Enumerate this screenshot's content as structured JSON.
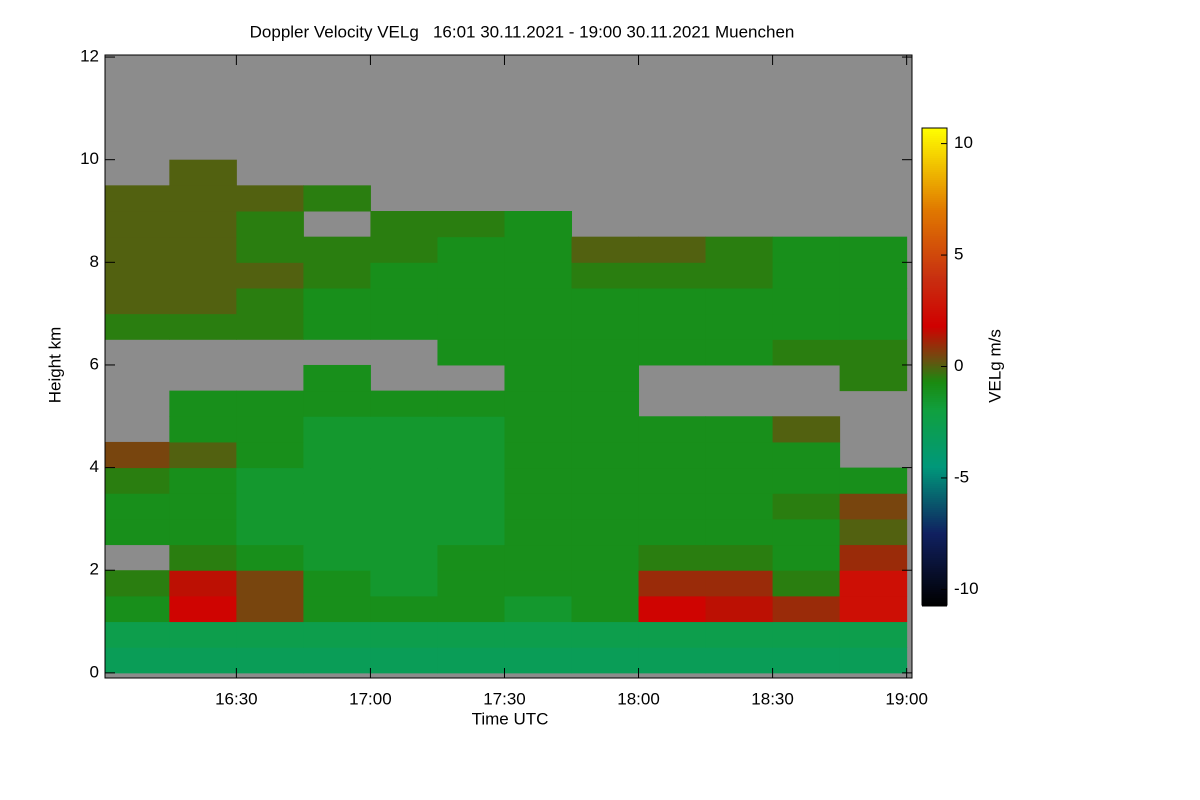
{
  "chart_data": {
    "type": "heatmap",
    "title": "Doppler Velocity VELg   16:01 30.11.2021 - 19:00 30.11.2021 Muenchen",
    "xlabel": "Time UTC",
    "ylabel": "Height km",
    "colorbar_label": "VELg m/s",
    "xlim": [
      16.01,
      19.02
    ],
    "ylim": [
      -0.1,
      12.04
    ],
    "xticks": [
      {
        "value": 16.5,
        "label": "16:30"
      },
      {
        "value": 17.0,
        "label": "17:00"
      },
      {
        "value": 17.5,
        "label": "17:30"
      },
      {
        "value": 18.0,
        "label": "18:00"
      },
      {
        "value": 18.5,
        "label": "18:30"
      },
      {
        "value": 19.0,
        "label": "19:00"
      }
    ],
    "yticks": [
      0,
      2,
      4,
      6,
      8,
      10,
      12
    ],
    "clim": [
      -10.7,
      10.7
    ],
    "cticks": [
      -10,
      -5,
      0,
      5,
      10
    ],
    "background": "#8c8c8c",
    "colormap": [
      [
        -10.7,
        "#000000"
      ],
      [
        -7.5,
        "#102060"
      ],
      [
        -4.5,
        "#00987a"
      ],
      [
        -2,
        "#10a040"
      ],
      [
        -0.7,
        "#1a8a10"
      ],
      [
        0.3,
        "#6a5010"
      ],
      [
        1.8,
        "#d00000"
      ],
      [
        4,
        "#c83010"
      ],
      [
        7,
        "#e07800"
      ],
      [
        10.7,
        "#ffff00"
      ]
    ],
    "x": [
      16.125,
      16.375,
      16.625,
      16.875,
      17.125,
      17.375,
      17.625,
      17.875,
      18.125,
      18.375,
      18.625,
      18.875
    ],
    "y": [
      0.25,
      0.75,
      1.25,
      1.75,
      2.25,
      2.75,
      3.25,
      3.75,
      4.25,
      4.75,
      5.25,
      5.75,
      6.25,
      6.75,
      7.25,
      7.75,
      8.25,
      8.75,
      9.25,
      9.75
    ],
    "z": [
      [
        -3,
        -3,
        -3,
        -3,
        -3,
        -3,
        -3,
        -3,
        -3,
        -3,
        -3,
        -3
      ],
      [
        -2.5,
        -2.5,
        -2.5,
        -2.5,
        -2.5,
        -2.5,
        -2.5,
        -2.5,
        -2.5,
        -2.5,
        -2.5,
        -2.5
      ],
      [
        -1,
        2,
        0.5,
        -1,
        -1,
        -1,
        -1.5,
        -1,
        2,
        1.5,
        1,
        2.5
      ],
      [
        -0.5,
        1.5,
        0.5,
        -1,
        -1.5,
        -1,
        -1,
        -1,
        1,
        1,
        -0.5,
        2.5
      ],
      [
        null,
        -0.5,
        -1,
        -1.5,
        -1.5,
        -1,
        -1,
        -1,
        -0.5,
        -0.5,
        -1,
        1
      ],
      [
        -1,
        -1,
        -1.5,
        -1.5,
        -1.5,
        -1.5,
        -1,
        -1,
        -1,
        -1,
        -1,
        0
      ],
      [
        -1,
        -1,
        -1.5,
        -1.5,
        -1.5,
        -1.5,
        -1,
        -1,
        -1,
        -1,
        -0.5,
        0.5
      ],
      [
        -0.5,
        -1,
        -1.5,
        -1.5,
        -1.5,
        -1.5,
        -1,
        -1,
        -1,
        -1,
        -1,
        -1
      ],
      [
        0.5,
        0,
        -1,
        -1.5,
        -1.5,
        -1.5,
        -1,
        -1,
        -1,
        -1,
        -1,
        null
      ],
      [
        null,
        -1,
        -1,
        -1.5,
        -1.5,
        -1.5,
        -1,
        -1,
        -1,
        -1,
        0,
        null
      ],
      [
        null,
        -1,
        -1,
        -1,
        -1,
        -1,
        -1,
        -1,
        null,
        null,
        null,
        null
      ],
      [
        null,
        null,
        null,
        -1,
        null,
        null,
        -1,
        -1,
        null,
        null,
        null,
        -0.5
      ],
      [
        null,
        null,
        null,
        null,
        null,
        -1,
        -1,
        -1,
        -1,
        -1,
        -0.5,
        -0.5
      ],
      [
        -0.5,
        -0.5,
        -0.5,
        -1,
        -1,
        -1,
        -1,
        -1,
        -1,
        -1,
        -1,
        -1
      ],
      [
        0,
        0,
        -0.5,
        -1,
        -1,
        -1,
        -1,
        -1,
        -1,
        -1,
        -1,
        -1
      ],
      [
        0,
        0,
        0,
        -0.5,
        -1,
        -1,
        -1,
        -0.5,
        -0.5,
        -0.5,
        -1,
        -1
      ],
      [
        0,
        0,
        -0.5,
        -0.5,
        -0.5,
        -1,
        -1,
        0,
        0,
        -0.5,
        -1,
        -1
      ],
      [
        0,
        0,
        -0.5,
        null,
        -0.5,
        -0.5,
        -1,
        null,
        null,
        null,
        null,
        null
      ],
      [
        0,
        0,
        0,
        -0.5,
        null,
        null,
        null,
        null,
        null,
        null,
        null,
        null
      ],
      [
        null,
        0,
        null,
        null,
        null,
        null,
        null,
        null,
        null,
        null,
        null,
        null
      ]
    ]
  }
}
